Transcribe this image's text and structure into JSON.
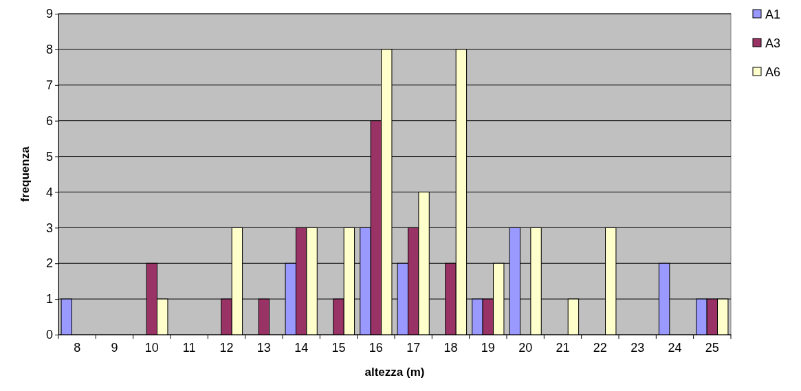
{
  "chart_data": {
    "type": "bar",
    "xlabel": "altezza (m)",
    "ylabel": "frequenza",
    "categories": [
      "8",
      "9",
      "10",
      "11",
      "12",
      "13",
      "14",
      "15",
      "16",
      "17",
      "18",
      "19",
      "20",
      "21",
      "22",
      "23",
      "24",
      "25"
    ],
    "series": [
      {
        "name": "A1",
        "color": "#9999ff",
        "values": [
          1,
          0,
          0,
          0,
          0,
          0,
          2,
          0,
          3,
          2,
          0,
          1,
          3,
          0,
          0,
          0,
          2,
          1
        ]
      },
      {
        "name": "A3",
        "color": "#993366",
        "values": [
          0,
          0,
          2,
          0,
          1,
          1,
          3,
          1,
          6,
          3,
          2,
          1,
          0,
          0,
          0,
          0,
          0,
          1
        ]
      },
      {
        "name": "A6",
        "color": "#ffffcc",
        "values": [
          0,
          0,
          1,
          0,
          3,
          0,
          3,
          3,
          8,
          4,
          8,
          2,
          3,
          1,
          3,
          0,
          0,
          1
        ]
      }
    ],
    "ylim": [
      0,
      9
    ],
    "yticks": [
      0,
      1,
      2,
      3,
      4,
      5,
      6,
      7,
      8,
      9
    ],
    "grid": "y",
    "legend": "right"
  }
}
